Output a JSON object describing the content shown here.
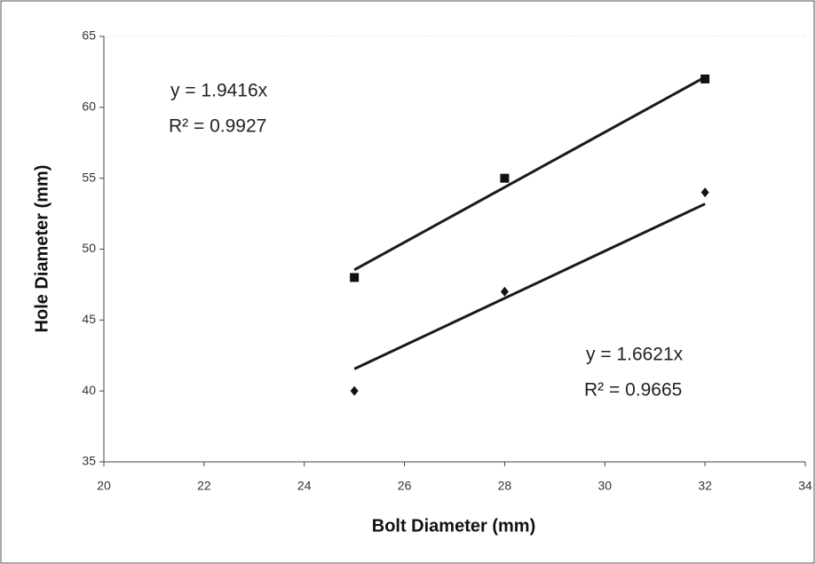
{
  "chart_data": {
    "type": "scatter",
    "x_label": "Bolt Diameter (mm)",
    "y_label": "Hole Diameter (mm)",
    "xlim": [
      20,
      34
    ],
    "xticks": [
      20,
      22,
      24,
      26,
      28,
      30,
      32,
      34
    ],
    "ylim": [
      35,
      65
    ],
    "yticks": [
      35,
      40,
      45,
      50,
      55,
      60,
      65
    ],
    "series": [
      {
        "marker": "square",
        "color": "#111111",
        "x": [
          25,
          28,
          32
        ],
        "values": [
          48,
          55,
          62
        ]
      },
      {
        "marker": "diamond",
        "color": "#111111",
        "x": [
          25,
          28,
          32
        ],
        "values": [
          40,
          47,
          54
        ]
      }
    ],
    "trendlines": [
      {
        "color": "#1a1a1a",
        "x": [
          25,
          32
        ],
        "values": [
          48.54,
          62.13
        ],
        "equation": "y = 1.9416x",
        "r_squared": "R² = 0.9927"
      },
      {
        "color": "#1a1a1a",
        "x": [
          25,
          32
        ],
        "values": [
          41.55,
          53.19
        ],
        "equation": "y = 1.6621x",
        "r_squared": "R² = 0.9665"
      }
    ]
  }
}
